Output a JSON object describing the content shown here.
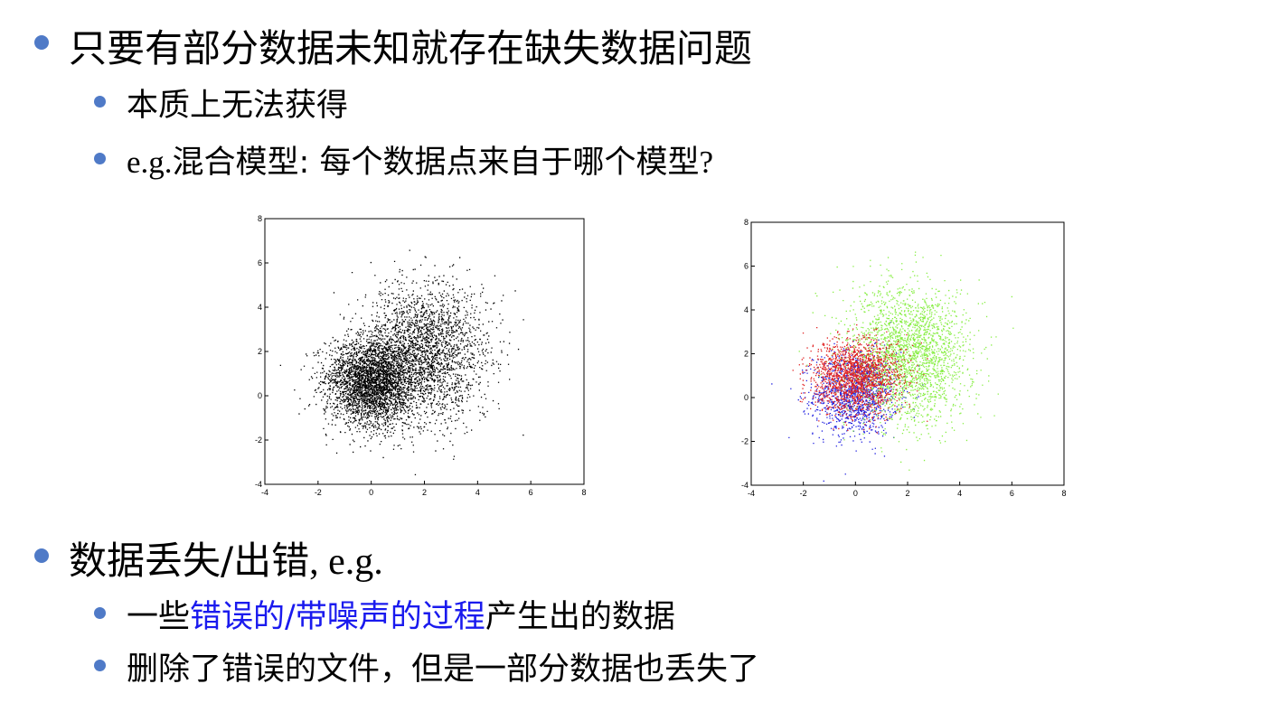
{
  "slide": {
    "bullets": [
      {
        "text": "只要有部分数据未知就存在缺失数据问题"
      },
      {
        "text": "本质上无法获得"
      },
      {
        "prefix": "e.g.",
        "text": "混合模型: 每个数据点来自于哪个模型",
        "suffix": "?"
      },
      {
        "text": "数据丢失/出错",
        "suffix": ", e.g."
      },
      {
        "text_before": "一些",
        "highlight": "错误的/带噪声的过程",
        "text_after": "产生出的数据"
      },
      {
        "text": "删除了错误的文件，但是一部分数据也丢失了"
      }
    ]
  },
  "chart_data": [
    {
      "type": "scatter",
      "xlim": [
        -4,
        8
      ],
      "ylim": [
        -4,
        8
      ],
      "xticks": [
        "-4",
        "-2",
        "0",
        "2",
        "4",
        "6",
        "8"
      ],
      "yticks": [
        "-4",
        "-2",
        "0",
        "2",
        "4",
        "6",
        "8"
      ],
      "grid": false,
      "colors": {
        "points": "#000000"
      },
      "clusters": [
        {
          "color": "#000000",
          "count": 1700,
          "mean": [
            0.0,
            1.0
          ],
          "std": [
            0.85,
            0.85
          ]
        },
        {
          "color": "#000000",
          "count": 1300,
          "mean": [
            0.0,
            0.2
          ],
          "std": [
            0.8,
            0.95
          ]
        },
        {
          "color": "#000000",
          "count": 2400,
          "mean": [
            2.0,
            2.0
          ],
          "std": [
            1.15,
            1.55
          ]
        }
      ]
    },
    {
      "type": "scatter",
      "xlim": [
        -4,
        8
      ],
      "ylim": [
        -4,
        8
      ],
      "xticks": [
        "-4",
        "-2",
        "0",
        "2",
        "4",
        "6",
        "8"
      ],
      "yticks": [
        "-4",
        "-2",
        "0",
        "2",
        "4",
        "6",
        "8"
      ],
      "grid": false,
      "clusters": [
        {
          "color": "#2020e0",
          "count": 1300,
          "mean": [
            0.0,
            0.2
          ],
          "std": [
            0.8,
            0.95
          ]
        },
        {
          "color": "#88ee44",
          "count": 2400,
          "mean": [
            2.0,
            2.0
          ],
          "std": [
            1.15,
            1.55
          ]
        },
        {
          "color": "#e02020",
          "count": 1700,
          "mean": [
            0.0,
            1.0
          ],
          "std": [
            0.85,
            0.85
          ]
        }
      ]
    }
  ]
}
